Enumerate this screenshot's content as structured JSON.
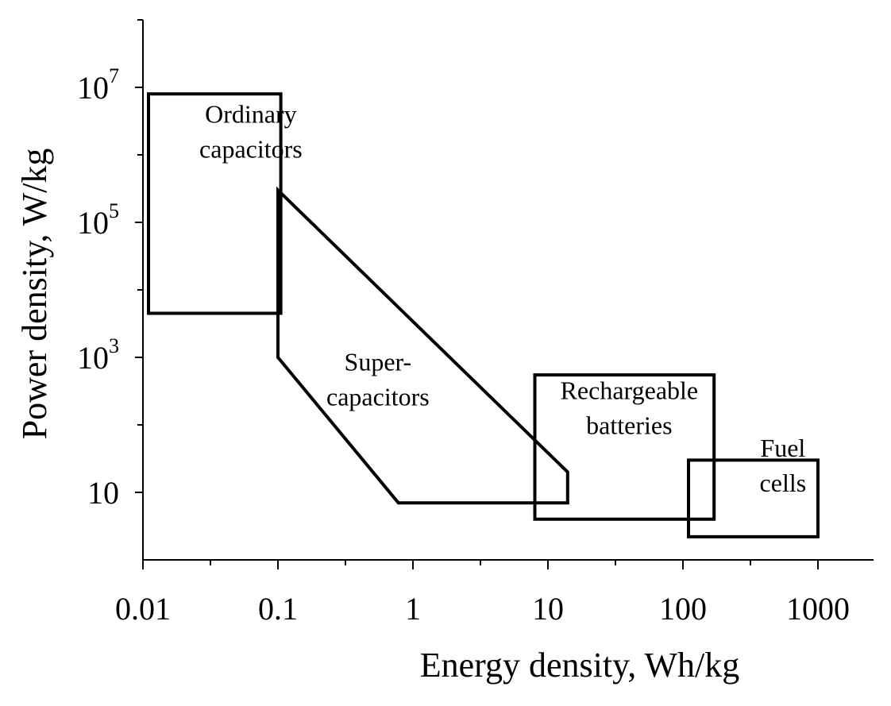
{
  "chart_data": {
    "type": "region",
    "xlabel": "Energy density, Wh/kg",
    "ylabel": "Power density,  W/kg",
    "xscale": "log",
    "yscale": "log",
    "xlim": [
      0.01,
      3000
    ],
    "ylim": [
      1,
      100000000
    ],
    "grid": false,
    "x_ticks": [
      {
        "value": 0.01,
        "label": "0.01"
      },
      {
        "value": 0.1,
        "label": "0.1"
      },
      {
        "value": 1,
        "label": "1"
      },
      {
        "value": 10,
        "label": "10"
      },
      {
        "value": 100,
        "label": "100"
      },
      {
        "value": 1000,
        "label": "1000"
      }
    ],
    "y_ticks": [
      {
        "value": 10,
        "base": "10",
        "exp": ""
      },
      {
        "value": 1000,
        "base": "10",
        "exp": "3"
      },
      {
        "value": 100000,
        "base": "10",
        "exp": "5"
      },
      {
        "value": 10000000,
        "base": "10",
        "exp": "7"
      }
    ],
    "regions": [
      {
        "name": "ordinary-capacitors",
        "label_lines": [
          "Ordinary",
          "capacitors"
        ],
        "label_pos": [
          0.063,
          3000000
        ],
        "points": [
          [
            0.011,
            8000000
          ],
          [
            0.105,
            8000000
          ],
          [
            0.105,
            4500
          ],
          [
            0.011,
            4500
          ]
        ]
      },
      {
        "name": "super-capacitors",
        "label_lines": [
          "Super-",
          "capacitors"
        ],
        "label_pos": [
          0.55,
          640
        ],
        "points": [
          [
            0.1,
            300000
          ],
          [
            14,
            20
          ],
          [
            14,
            7
          ],
          [
            0.78,
            7
          ],
          [
            0.1,
            1000
          ]
        ]
      },
      {
        "name": "rechargeable-batteries",
        "label_lines": [
          "Rechargeable",
          "batteries"
        ],
        "label_pos": [
          40,
          240
        ],
        "points": [
          [
            8,
            550
          ],
          [
            170,
            550
          ],
          [
            170,
            4
          ],
          [
            8,
            4
          ]
        ]
      },
      {
        "name": "fuel-cells",
        "label_lines": [
          "Fuel",
          "cells"
        ],
        "label_pos": [
          550,
          34
        ],
        "points": [
          [
            110,
            30
          ],
          [
            1000,
            30
          ],
          [
            1000,
            2.2
          ],
          [
            110,
            2.2
          ]
        ]
      }
    ]
  }
}
